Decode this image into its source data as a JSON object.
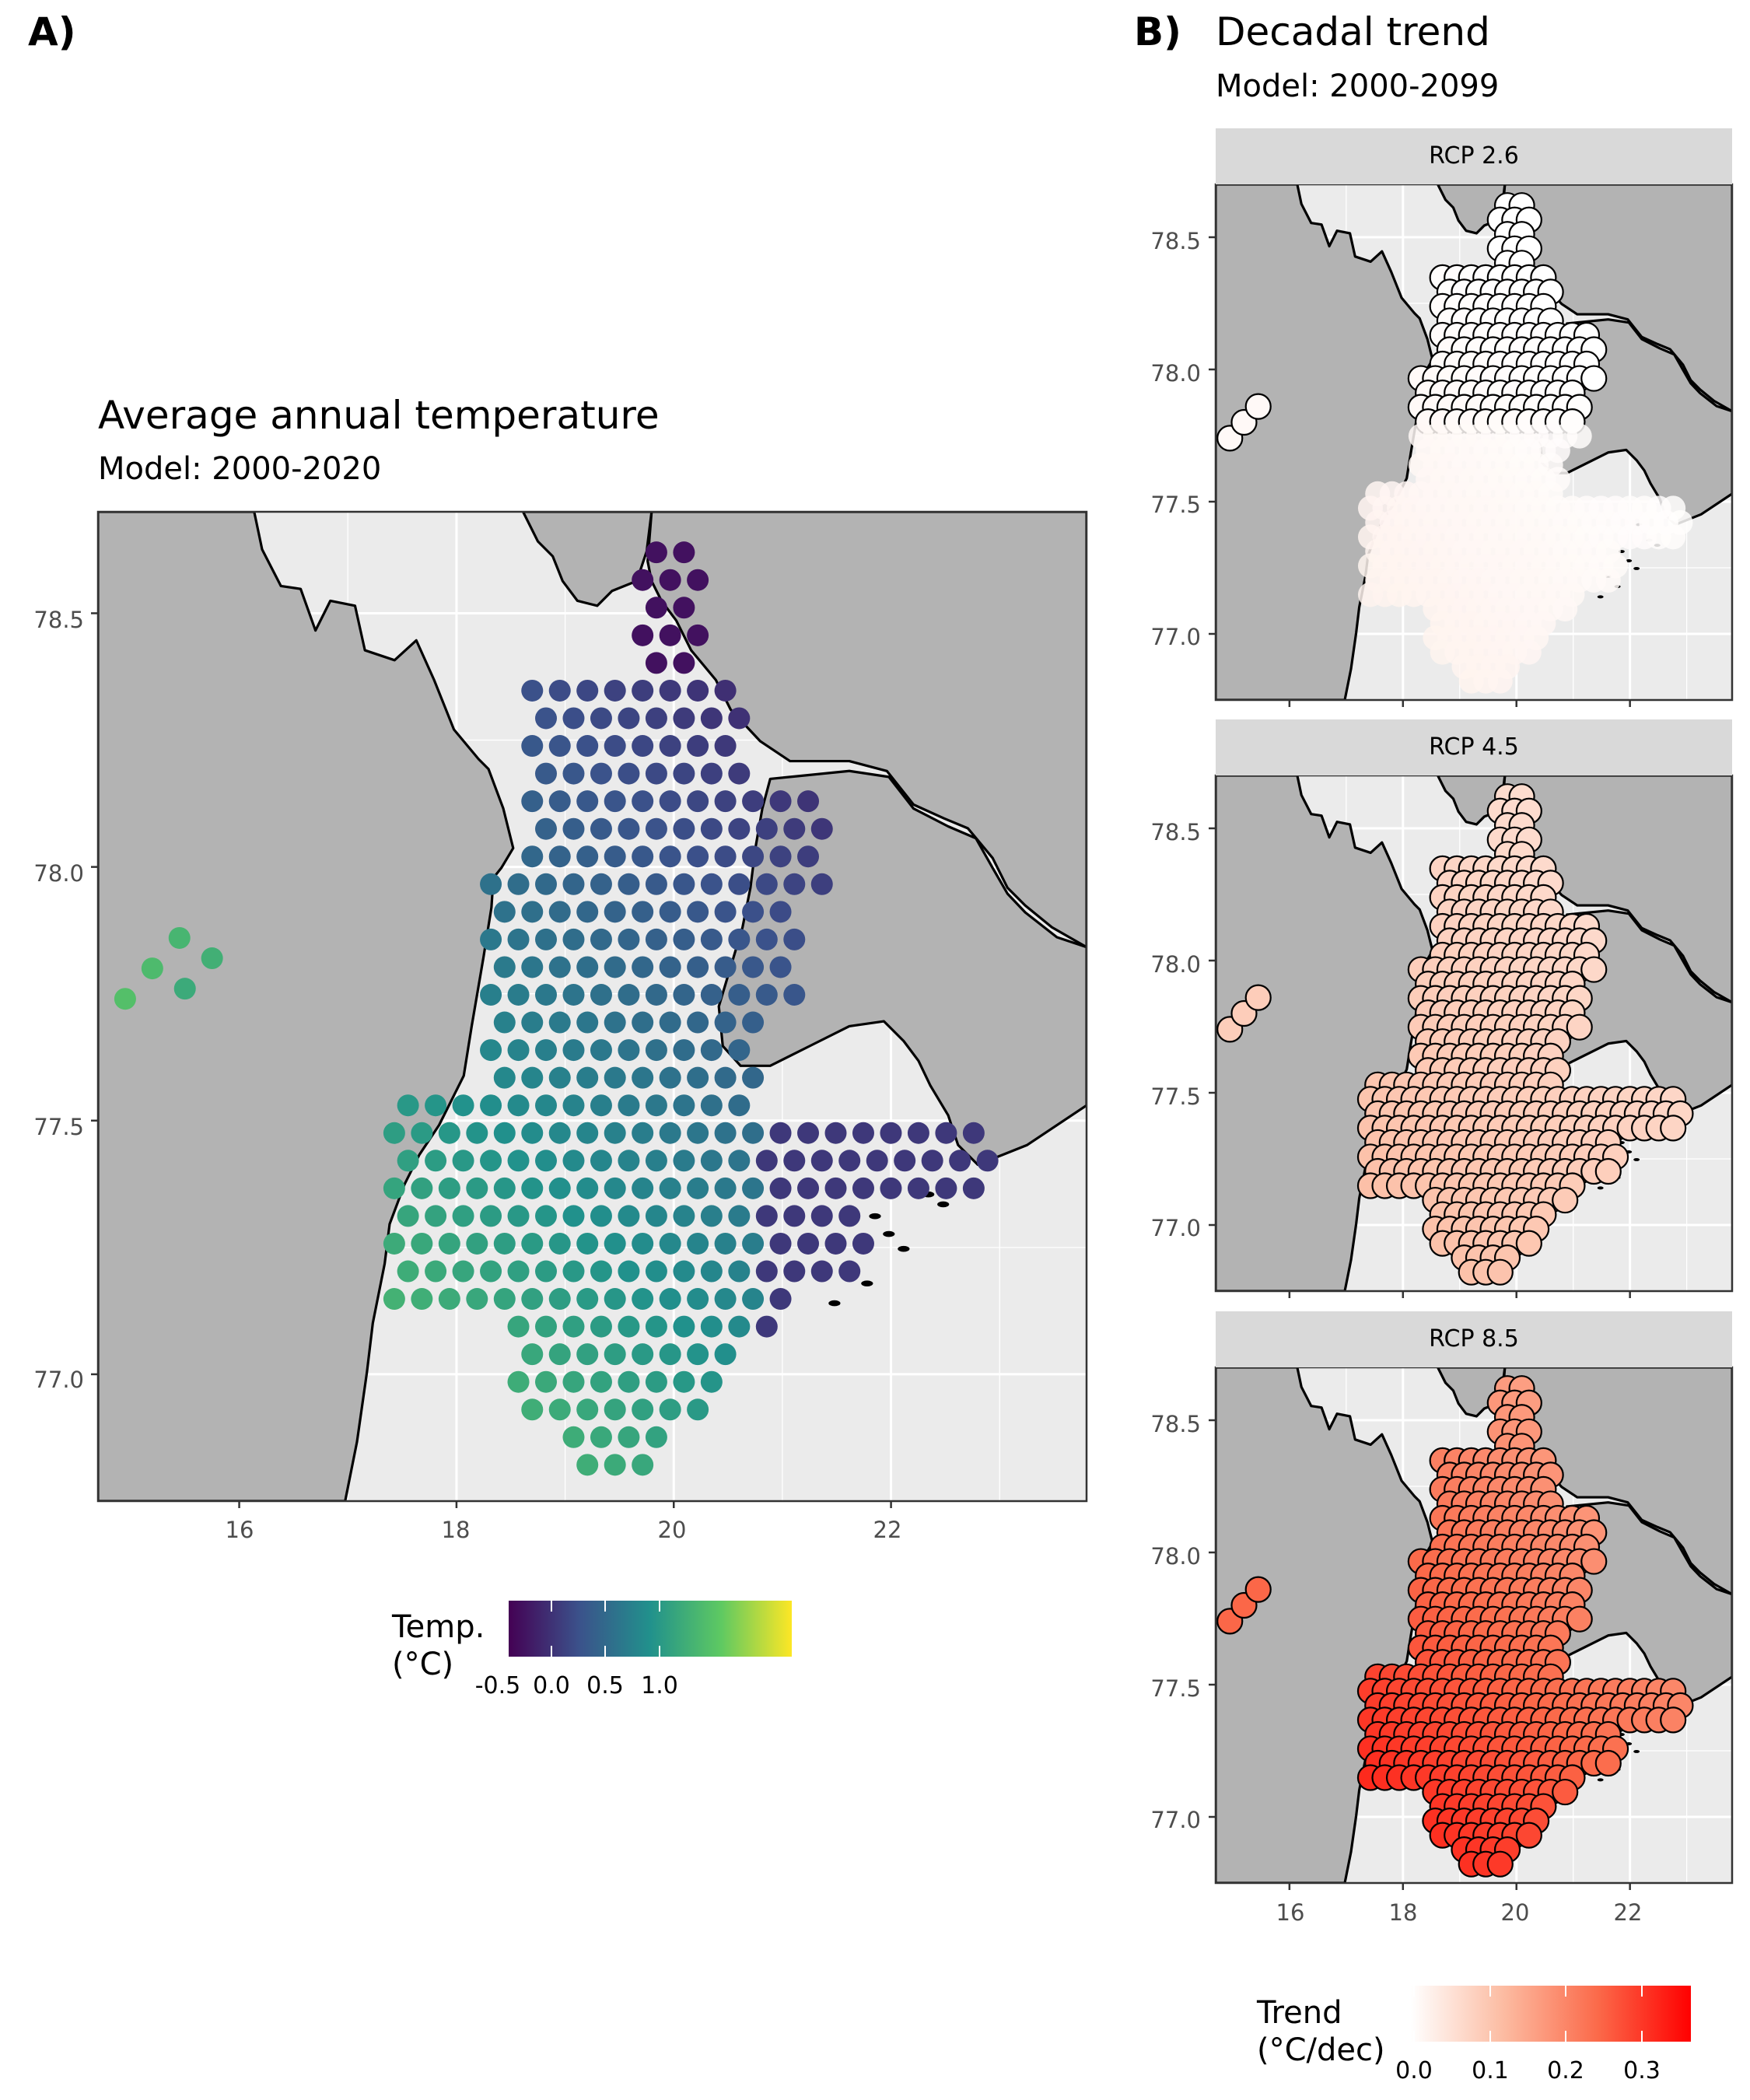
{
  "panel_a": {
    "label": "A)",
    "title": "Average annual temperature",
    "subtitle": "Model: 2000-2020",
    "x_ticks": [
      "16",
      "18",
      "20",
      "22"
    ],
    "y_ticks": [
      "78.5",
      "78.0",
      "77.5",
      "77.0"
    ],
    "legend": {
      "title": "Temp.\n(°C)",
      "ticks": [
        "-0.5",
        "0.0",
        "0.5",
        "1.0"
      ],
      "colors": [
        "#440154",
        "#3b528b",
        "#21918c",
        "#5ec962",
        "#fde725"
      ]
    }
  },
  "panel_b": {
    "label": "B)",
    "title": "Decadal trend",
    "subtitle": "Model: 2000-2099",
    "facets": [
      {
        "strip": "RCP 2.6"
      },
      {
        "strip": "RCP 4.5"
      },
      {
        "strip": "RCP 8.5"
      }
    ],
    "x_ticks": [
      "16",
      "18",
      "20",
      "22"
    ],
    "y_ticks": [
      "78.5",
      "78.0",
      "77.5",
      "77.0"
    ],
    "legend": {
      "title": "Trend\n(°C/dec)",
      "ticks": [
        "0.0",
        "0.1",
        "0.2",
        "0.3"
      ],
      "colors": [
        "#ffffff",
        "#fcbba1",
        "#fb6a4a",
        "#ff0000"
      ]
    }
  },
  "map_colors": {
    "land": "#b3b3b3",
    "sea": "#ebebeb",
    "coast": "#000000",
    "grid": "#ffffff"
  },
  "chart_data": [
    {
      "type": "scatter",
      "title": "Average annual temperature",
      "subtitle": "Model: 2000-2020",
      "xlim": [
        14.7,
        23.8
      ],
      "ylim": [
        76.75,
        78.7
      ],
      "x_ticks": [
        16,
        18,
        20,
        22
      ],
      "y_ticks": [
        77.0,
        77.5,
        78.0,
        78.5
      ],
      "color_variable": "Temp. (°C)",
      "color_range": [
        -0.7,
        1.35
      ],
      "points_description": "grid of model cells over the sea",
      "value_by_region": {
        "northern fjord": -0.6,
        "central": -0.1,
        "central south": 0.3,
        "southwest": 0.6,
        "southern tip": 1.0,
        "eastern arm": -0.3,
        "western inlet": 0.8
      }
    },
    {
      "type": "scatter",
      "title": "Decadal trend",
      "subtitle": "Model: 2000-2099",
      "facets": [
        "RCP 2.6",
        "RCP 4.5",
        "RCP 8.5"
      ],
      "xlim": [
        14.7,
        23.8
      ],
      "ylim": [
        76.75,
        78.7
      ],
      "x_ticks": [
        16,
        18,
        20,
        22
      ],
      "y_ticks": [
        77.0,
        77.5,
        78.0,
        78.5
      ],
      "color_variable": "Trend (°C/dec)",
      "color_range": [
        0.0,
        0.37
      ],
      "typical_trend": {
        "RCP 2.6": 0.01,
        "RCP 4.5": 0.09,
        "RCP 8.5": 0.25
      },
      "max_trend": {
        "RCP 2.6": 0.03,
        "RCP 4.5": 0.13,
        "RCP 8.5": 0.37
      }
    }
  ]
}
